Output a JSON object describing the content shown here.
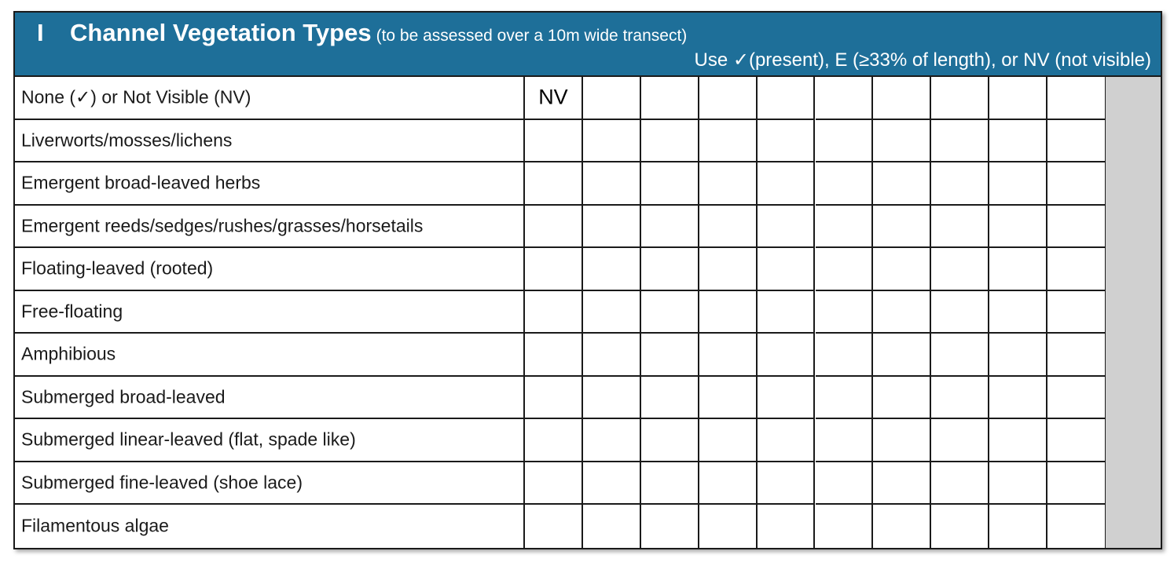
{
  "section": {
    "letter": "I",
    "title": "Channel Vegetation Types",
    "subtitle": "(to be assessed over a 10m wide transect)",
    "instructions": "Use ✓(present), E (≥33% of length), or NV (not visible)"
  },
  "rows": [
    {
      "label": "None (✓) or Not Visible (NV)",
      "marks": [
        "NV",
        "",
        "",
        "",
        "",
        "",
        "",
        "",
        "",
        ""
      ]
    },
    {
      "label": "Liverworts/mosses/lichens",
      "marks": [
        "",
        "",
        "",
        "",
        "",
        "",
        "",
        "",
        "",
        ""
      ]
    },
    {
      "label": "Emergent broad-leaved herbs",
      "marks": [
        "",
        "",
        "",
        "",
        "",
        "",
        "",
        "",
        "",
        ""
      ]
    },
    {
      "label": "Emergent reeds/sedges/rushes/grasses/horsetails",
      "marks": [
        "",
        "",
        "",
        "",
        "",
        "",
        "",
        "",
        "",
        ""
      ]
    },
    {
      "label": "Floating-leaved (rooted)",
      "marks": [
        "",
        "",
        "",
        "",
        "",
        "",
        "",
        "",
        "",
        ""
      ]
    },
    {
      "label": "Free-floating",
      "marks": [
        "",
        "",
        "",
        "",
        "",
        "",
        "",
        "",
        "",
        ""
      ]
    },
    {
      "label": "Amphibious",
      "marks": [
        "",
        "",
        "",
        "",
        "",
        "",
        "",
        "",
        "",
        ""
      ]
    },
    {
      "label": "Submerged broad-leaved",
      "marks": [
        "",
        "",
        "",
        "",
        "",
        "",
        "",
        "",
        "",
        ""
      ]
    },
    {
      "label": "Submerged linear-leaved (flat, spade like)",
      "marks": [
        "",
        "",
        "",
        "",
        "",
        "",
        "",
        "",
        "",
        ""
      ]
    },
    {
      "label": "Submerged fine-leaved (shoe lace)",
      "marks": [
        "",
        "",
        "",
        "",
        "",
        "",
        "",
        "",
        "",
        ""
      ]
    },
    {
      "label": "Filamentous algae",
      "marks": [
        "",
        "",
        "",
        "",
        "",
        "",
        "",
        "",
        "",
        ""
      ]
    }
  ]
}
